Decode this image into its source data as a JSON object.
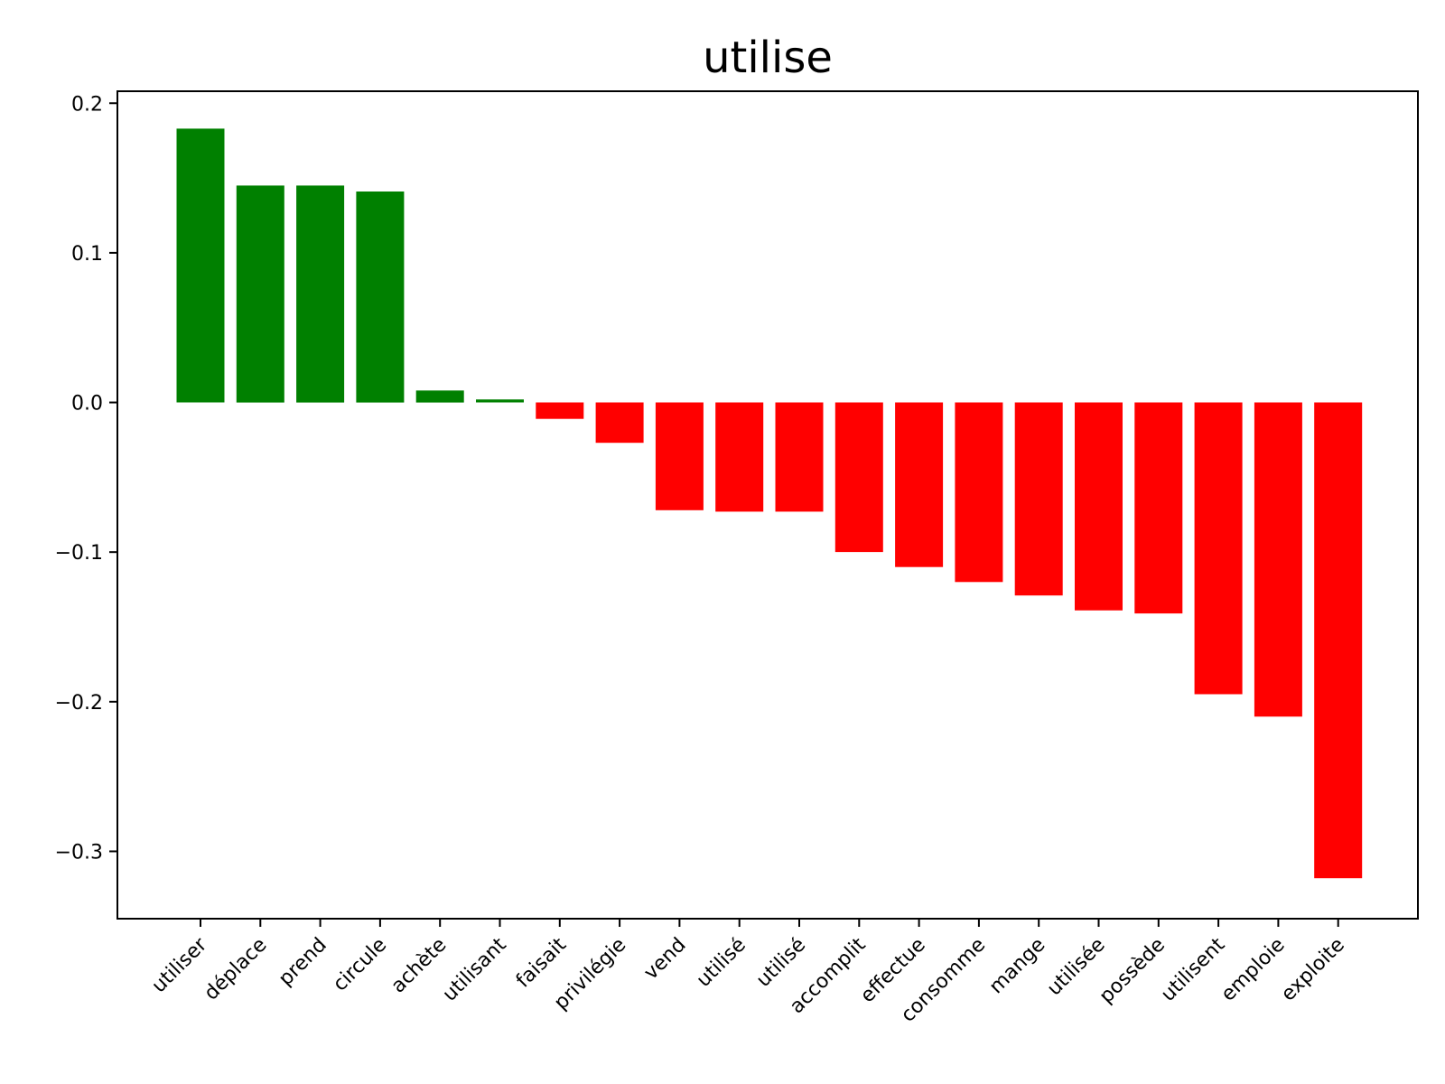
{
  "chart_data": {
    "type": "bar",
    "title": "utilise",
    "xlabel": "",
    "ylabel": "",
    "categories": [
      "utiliser",
      "déplace",
      "prend",
      "circule",
      "achète",
      "utilisant",
      "faisait",
      "privilégie",
      "vend",
      "utilisé",
      "utilisé",
      "accomplit",
      "effectue",
      "consomme",
      "mange",
      "utilisée",
      "possède",
      "utilisent",
      "emploie",
      "exploite"
    ],
    "values": [
      0.183,
      0.145,
      0.145,
      0.141,
      0.008,
      0.002,
      -0.011,
      -0.027,
      -0.072,
      -0.073,
      -0.073,
      -0.1,
      -0.11,
      -0.12,
      -0.129,
      -0.139,
      -0.141,
      -0.195,
      -0.21,
      -0.318
    ],
    "ylim": [
      -0.345,
      0.208
    ],
    "yticks": [
      0.2,
      0.1,
      0.0,
      -0.1,
      -0.2,
      -0.3
    ],
    "ytick_labels": [
      "0.2",
      "0.1",
      "0.0",
      "−0.1",
      "−0.2",
      "−0.3"
    ],
    "colors": {
      "positive": "#008000",
      "negative": "#ff0000"
    },
    "grid": false,
    "legend": "none"
  }
}
